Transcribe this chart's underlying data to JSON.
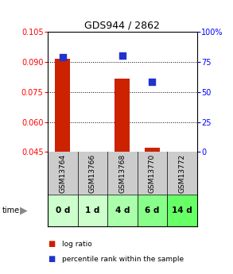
{
  "title": "GDS944 / 2862",
  "samples": [
    "GSM13764",
    "GSM13766",
    "GSM13768",
    "GSM13770",
    "GSM13772"
  ],
  "time_labels": [
    "0 d",
    "1 d",
    "4 d",
    "6 d",
    "14 d"
  ],
  "log_ratio": [
    0.0915,
    null,
    0.0815,
    0.047,
    null
  ],
  "percentile_rank": [
    79,
    null,
    80,
    58,
    null
  ],
  "ylim_left": [
    0.045,
    0.105
  ],
  "ylim_right": [
    0,
    100
  ],
  "yticks_left": [
    0.045,
    0.06,
    0.075,
    0.09,
    0.105
  ],
  "yticks_right": [
    0,
    25,
    50,
    75,
    100
  ],
  "bar_color": "#cc2200",
  "dot_color": "#2233cc",
  "background_color": "#ffffff",
  "sample_bg": "#cccccc",
  "time_bg_colors": [
    "#ccffcc",
    "#ccffcc",
    "#aaffaa",
    "#88ff88",
    "#66ff66"
  ],
  "bar_width": 0.5,
  "dot_size": 40
}
